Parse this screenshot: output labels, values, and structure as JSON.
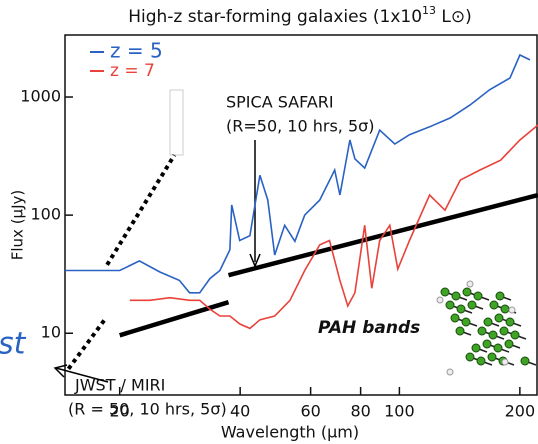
{
  "chart_data": {
    "type": "line",
    "title": "High-z  star-forming galaxies (1x10",
    "title_sup": "13",
    "title_end": " L⊙)",
    "xlabel": "Wavelength (µm)",
    "ylabel": "Flux (µJy)",
    "xscale": "log",
    "yscale": "log",
    "xlim": [
      14.6,
      222
    ],
    "ylim": [
      3,
      3350
    ],
    "xticks": [
      20,
      40,
      60,
      80,
      100,
      200
    ],
    "yticks": [
      10,
      100,
      1000
    ],
    "legend": "upper left",
    "series": [
      {
        "name": "z = 7",
        "color": "#e8423a",
        "x": [
          21.2,
          23.8,
          26.7,
          29.9,
          31.7,
          33.6,
          35.6,
          37.7,
          39.9,
          42.3,
          44.8,
          48.8,
          53.3,
          58.0,
          63.2,
          66.9,
          71.0,
          74.3,
          77.4,
          81.9,
          85.3,
          89.3,
          94.6,
          99.1,
          106,
          119,
          130,
          142,
          159,
          179,
          200,
          222
        ],
        "values": [
          19,
          19,
          20,
          19,
          19,
          16,
          14,
          14,
          12,
          11,
          13,
          14,
          19,
          34,
          56,
          61,
          28,
          17,
          22,
          82,
          24,
          61,
          82,
          35,
          61,
          148,
          110,
          198,
          241,
          292,
          433,
          580
        ]
      },
      {
        "name": "z = 5",
        "color": "#2a62c4",
        "x": [
          14.6,
          17.8,
          20,
          22.4,
          25.2,
          28.2,
          29.9,
          31.7,
          33.6,
          35.6,
          37.7,
          38.1,
          39.9,
          42.3,
          44.8,
          46.9,
          48.8,
          51.7,
          54.8,
          58.0,
          63.2,
          68.9,
          71.0,
          75.2,
          77.4,
          81.9,
          89.3,
          97.4,
          106,
          119,
          134,
          150,
          168,
          189,
          200,
          212
        ],
        "values": [
          34,
          34,
          34,
          41,
          33,
          28,
          22,
          22,
          29,
          34,
          51,
          122,
          61,
          67,
          218,
          134,
          46,
          82,
          60,
          100,
          134,
          241,
          148,
          433,
          300,
          250,
          525,
          400,
          480,
          560,
          665,
          855,
          1150,
          1450,
          2270,
          2060
        ]
      }
    ],
    "lines": [
      {
        "color": "#000000",
        "style": "solid",
        "x": [
          37.4,
          222
        ],
        "values": [
          31,
          148
        ]
      },
      {
        "color": "#000000",
        "style": "solid",
        "x": [
          20,
          37.4
        ],
        "values": [
          9.6,
          18.3
        ]
      },
      {
        "color": "#000000",
        "style": "dotted",
        "x": [
          14.9,
          18.3
        ],
        "values": [
          5.0,
          12.9
        ]
      },
      {
        "color": "#000000",
        "style": "dotted",
        "x": [
          18.6,
          27.4
        ],
        "values": [
          38,
          322
        ]
      }
    ],
    "annotations": [
      "SPICA SAFARI",
      "(R=50, 10 hrs, 5σ)",
      "JWST / MIRI",
      "(R = 50, 10 hrs, 5σ)",
      "PAH bands",
      "st"
    ]
  }
}
